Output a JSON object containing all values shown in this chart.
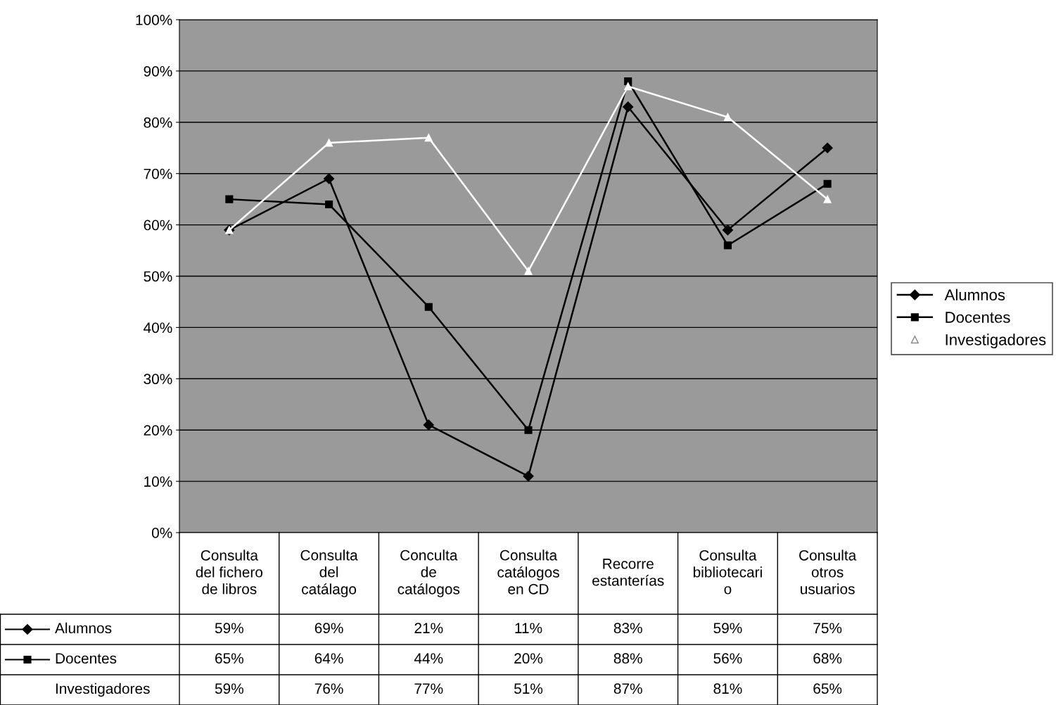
{
  "chart_data": {
    "type": "line",
    "categories": [
      "Consulta\ndel fichero\nde libros",
      "Consulta\ndel\ncatálago",
      "Conculta\nde\ncatálogos",
      "Consulta\ncatálogos\nen CD",
      "Recorre\nestanterías",
      "Consulta\nbibliotecari\no",
      "Consulta\notros\nusuarios"
    ],
    "series": [
      {
        "name": "Alumnos",
        "color": "#000000",
        "marker": "diamond",
        "values": [
          59,
          69,
          21,
          11,
          83,
          59,
          75
        ],
        "value_labels": [
          "59%",
          "69%",
          "21%",
          "11%",
          "83%",
          "59%",
          "75%"
        ]
      },
      {
        "name": "Docentes",
        "color": "#000000",
        "marker": "square",
        "values": [
          65,
          64,
          44,
          20,
          88,
          56,
          68
        ],
        "value_labels": [
          "65%",
          "64%",
          "44%",
          "20%",
          "88%",
          "56%",
          "68%"
        ]
      },
      {
        "name": "Investigadores",
        "color": "#ffffff",
        "marker": "triangle",
        "values": [
          59,
          76,
          77,
          51,
          87,
          81,
          65
        ],
        "value_labels": [
          "59%",
          "76%",
          "77%",
          "51%",
          "87%",
          "81%",
          "65%"
        ]
      }
    ],
    "ylim": [
      0,
      100
    ],
    "yticks": [
      {
        "value": 0,
        "label": "0%"
      },
      {
        "value": 10,
        "label": "10%"
      },
      {
        "value": 20,
        "label": "20%"
      },
      {
        "value": 30,
        "label": "30%"
      },
      {
        "value": 40,
        "label": "40%"
      },
      {
        "value": 50,
        "label": "50%"
      },
      {
        "value": 60,
        "label": "60%"
      },
      {
        "value": 70,
        "label": "70%"
      },
      {
        "value": 80,
        "label": "80%"
      },
      {
        "value": 90,
        "label": "90%"
      },
      {
        "value": 100,
        "label": "100%"
      }
    ],
    "grid": "y",
    "legend": "right",
    "line_style": "solid"
  }
}
